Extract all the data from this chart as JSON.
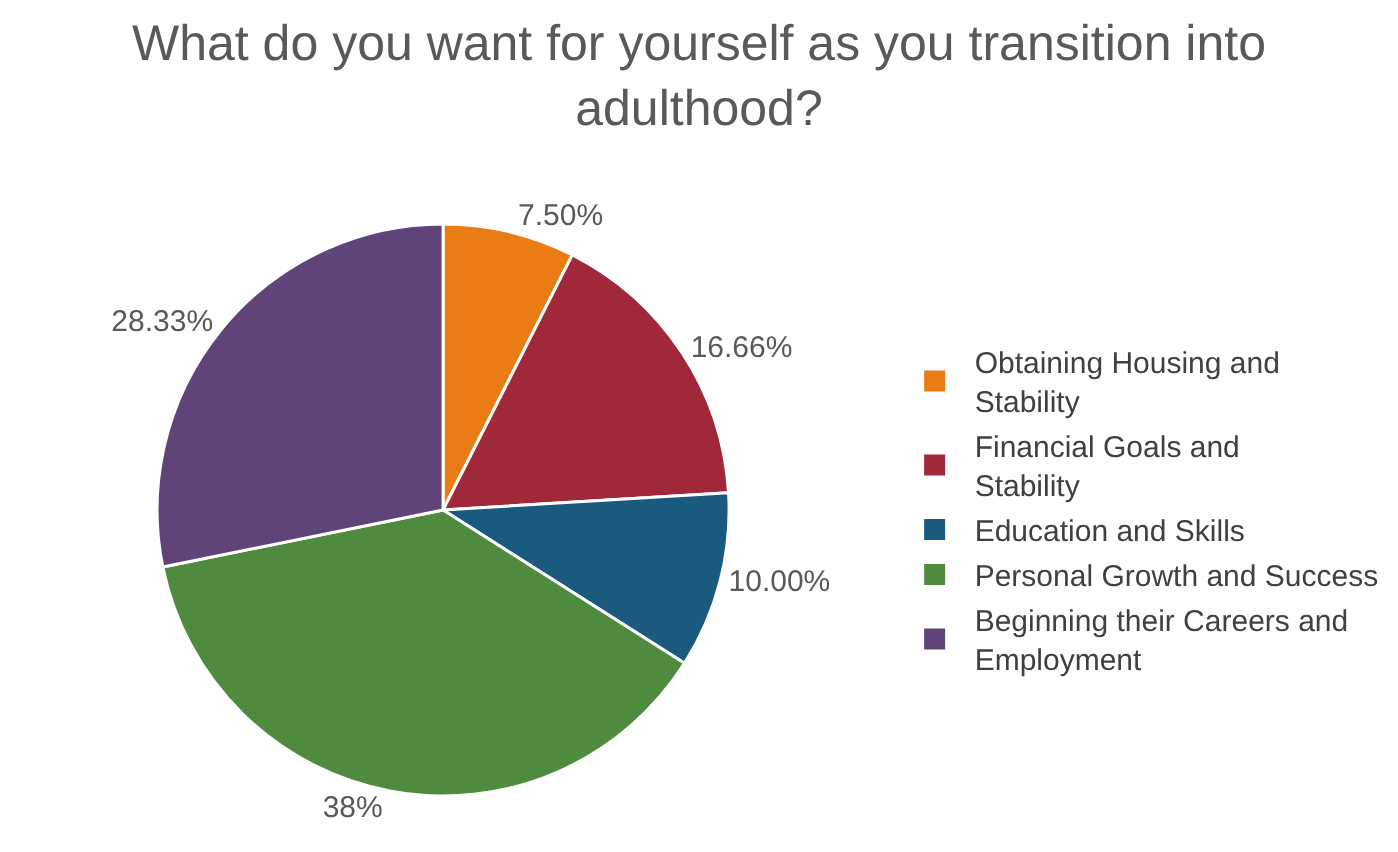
{
  "chart_data": {
    "type": "pie",
    "title": "What do you want for yourself as you transition into adulthood?",
    "categories": [
      "Obtaining Housing and Stability",
      "Financial Goals and Stability",
      "Education and Skills",
      "Personal Growth and Success",
      "Beginning their Careers and Employment"
    ],
    "values": [
      7.5,
      16.66,
      10.0,
      38,
      28.33
    ],
    "value_labels": [
      "7.50%",
      "16.66%",
      "10.00%",
      "38%",
      "28.33%"
    ],
    "colors": [
      "#e97c14",
      "#a0283a",
      "#1a5a7e",
      "#4e8b3f",
      "#5f4479"
    ],
    "legend": "right"
  }
}
